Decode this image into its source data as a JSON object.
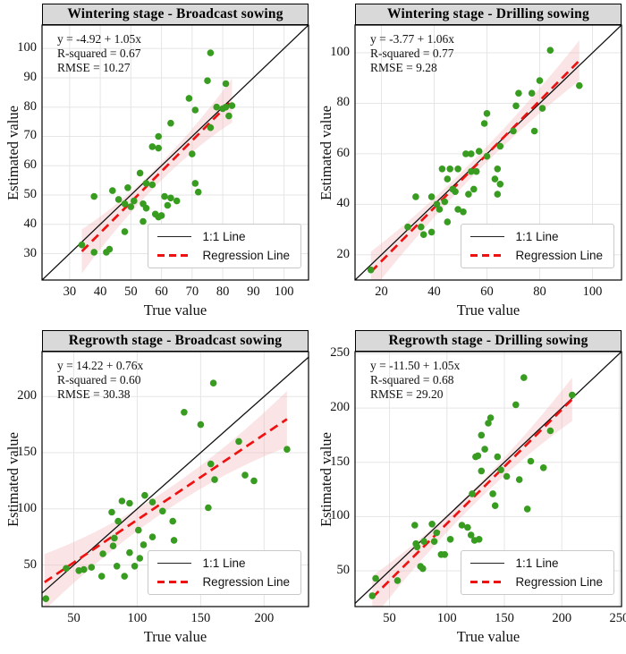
{
  "figure": {
    "colors": {
      "point": "#389c21",
      "regression": "#ee1111",
      "band": "#f2b9bb",
      "identity": "#111111",
      "grid": "#e5e5e5",
      "strip_bg": "#d9d9d9",
      "plot_border": "#000000",
      "legend_border": "#c9c9c9"
    }
  },
  "chart_data": [
    {
      "id": "wintering-broadcast",
      "type": "scatter",
      "title": "Wintering stage - Broadcast sowing",
      "xlabel": "True value",
      "ylabel": "Estimated value",
      "annotation": {
        "equation": "y = -4.92 + 1.05x",
        "r_squared": "R-squared = 0.67",
        "rmse": "RMSE = 10.27"
      },
      "regression": {
        "intercept": -4.92,
        "slope": 1.05,
        "x_start": 34,
        "x_end": 83,
        "band_halfwidth_mid": 3,
        "band_halfwidth_end": 7.5
      },
      "xlim": [
        21,
        108
      ],
      "ylim": [
        21,
        108
      ],
      "xticks": [
        30,
        40,
        50,
        60,
        70,
        80,
        90,
        100
      ],
      "yticks": [
        30,
        40,
        50,
        60,
        70,
        80,
        90,
        100
      ],
      "legend": [
        {
          "label": "1:1 Line",
          "style": "solid-black"
        },
        {
          "label": "Regression Line",
          "style": "dashed-red"
        }
      ],
      "points": [
        [
          34,
          33
        ],
        [
          38,
          49.5
        ],
        [
          38,
          30.5
        ],
        [
          42,
          30.5
        ],
        [
          43,
          31.5
        ],
        [
          44,
          51.5
        ],
        [
          46,
          48.5
        ],
        [
          48,
          37.5
        ],
        [
          48,
          47
        ],
        [
          49,
          52.5
        ],
        [
          50,
          46
        ],
        [
          51,
          48
        ],
        [
          53,
          57.5
        ],
        [
          54,
          41
        ],
        [
          54,
          47
        ],
        [
          55,
          45.5
        ],
        [
          55,
          54
        ],
        [
          57,
          53.5
        ],
        [
          57,
          66.5
        ],
        [
          58,
          43.5
        ],
        [
          59,
          42.5
        ],
        [
          59,
          66
        ],
        [
          59,
          70
        ],
        [
          60,
          43
        ],
        [
          61,
          49.5
        ],
        [
          62,
          46.5
        ],
        [
          63,
          49
        ],
        [
          63,
          74.5
        ],
        [
          65,
          48
        ],
        [
          69,
          83
        ],
        [
          70,
          64
        ],
        [
          71,
          54
        ],
        [
          71,
          79
        ],
        [
          72,
          51
        ],
        [
          75,
          89
        ],
        [
          76,
          73
        ],
        [
          76,
          98.5
        ],
        [
          78,
          80
        ],
        [
          80,
          79.5
        ],
        [
          81,
          80
        ],
        [
          81,
          88
        ],
        [
          82,
          77
        ],
        [
          83,
          80.5
        ]
      ]
    },
    {
      "id": "wintering-drilling",
      "type": "scatter",
      "title": "Wintering stage - Drilling sowing",
      "xlabel": "True value",
      "ylabel": "Estimated value",
      "annotation": {
        "equation": "y = -3.77 + 1.06x",
        "r_squared": "R-squared = 0.77",
        "rmse": "RMSE = 9.28"
      },
      "regression": {
        "intercept": -3.77,
        "slope": 1.06,
        "x_start": 16,
        "x_end": 95,
        "band_halfwidth_mid": 3,
        "band_halfwidth_end": 8
      },
      "xlim": [
        10,
        111
      ],
      "ylim": [
        10,
        111
      ],
      "xticks": [
        20,
        40,
        60,
        80,
        100
      ],
      "yticks": [
        20,
        40,
        60,
        80,
        100
      ],
      "legend": [
        {
          "label": "1:1 Line",
          "style": "solid-black"
        },
        {
          "label": "Regression Line",
          "style": "dashed-red"
        }
      ],
      "points": [
        [
          16,
          14
        ],
        [
          30,
          31
        ],
        [
          33,
          43
        ],
        [
          35,
          31
        ],
        [
          36,
          28
        ],
        [
          39,
          29
        ],
        [
          39,
          43
        ],
        [
          41,
          40
        ],
        [
          42,
          38
        ],
        [
          43,
          54
        ],
        [
          44,
          41
        ],
        [
          45,
          33
        ],
        [
          45,
          50
        ],
        [
          46,
          54
        ],
        [
          47,
          46
        ],
        [
          48,
          45
        ],
        [
          49,
          38
        ],
        [
          49,
          54
        ],
        [
          51,
          37
        ],
        [
          52,
          60
        ],
        [
          53,
          44
        ],
        [
          54,
          53
        ],
        [
          54,
          60
        ],
        [
          55,
          46
        ],
        [
          56,
          53
        ],
        [
          57,
          61
        ],
        [
          59,
          72
        ],
        [
          60,
          59
        ],
        [
          60,
          76
        ],
        [
          63,
          50
        ],
        [
          64,
          44
        ],
        [
          64,
          54
        ],
        [
          65,
          48
        ],
        [
          65,
          63
        ],
        [
          70,
          69
        ],
        [
          71,
          79
        ],
        [
          72,
          84
        ],
        [
          77,
          84
        ],
        [
          78,
          69
        ],
        [
          80,
          89
        ],
        [
          81,
          78
        ],
        [
          84,
          101
        ],
        [
          95,
          87
        ]
      ]
    },
    {
      "id": "regrowth-broadcast",
      "type": "scatter",
      "title": "Regrowth stage - Broadcast sowing",
      "xlabel": "True value",
      "ylabel": "Estimated value",
      "annotation": {
        "equation": "y = 14.22 + 0.76x",
        "r_squared": "R-squared = 0.60",
        "rmse": "RMSE = 30.38"
      },
      "regression": {
        "intercept": 14.22,
        "slope": 0.76,
        "x_start": 27,
        "x_end": 218,
        "band_halfwidth_mid": 9,
        "band_halfwidth_end": 25
      },
      "xlim": [
        25,
        235
      ],
      "ylim": [
        13,
        240
      ],
      "xticks": [
        50,
        100,
        150,
        200
      ],
      "yticks": [
        50,
        100,
        150,
        200
      ],
      "legend": [
        {
          "label": "1:1 Line",
          "style": "solid-black"
        },
        {
          "label": "Regression Line",
          "style": "dashed-red"
        }
      ],
      "points": [
        [
          28,
          20
        ],
        [
          44,
          47
        ],
        [
          54,
          45
        ],
        [
          58,
          46
        ],
        [
          64,
          48
        ],
        [
          72,
          40
        ],
        [
          73,
          60
        ],
        [
          80,
          97
        ],
        [
          81,
          67
        ],
        [
          82,
          74
        ],
        [
          84,
          49
        ],
        [
          85,
          89
        ],
        [
          88,
          107
        ],
        [
          90,
          40
        ],
        [
          94,
          61
        ],
        [
          94,
          105
        ],
        [
          98,
          49
        ],
        [
          101,
          81
        ],
        [
          102,
          56
        ],
        [
          105,
          68
        ],
        [
          106,
          112
        ],
        [
          112,
          75
        ],
        [
          112,
          106
        ],
        [
          120,
          98
        ],
        [
          128,
          89
        ],
        [
          129,
          72
        ],
        [
          137,
          186
        ],
        [
          150,
          175
        ],
        [
          156,
          101
        ],
        [
          158,
          140
        ],
        [
          160,
          212
        ],
        [
          161,
          126
        ],
        [
          180,
          160
        ],
        [
          185,
          130
        ],
        [
          192,
          125
        ],
        [
          218,
          153
        ]
      ]
    },
    {
      "id": "regrowth-drilling",
      "type": "scatter",
      "title": "Regrowth stage - Drilling sowing",
      "xlabel": "True value",
      "ylabel": "Estimated value",
      "annotation": {
        "equation": "y = -11.50 + 1.05x",
        "r_squared": "R-squared = 0.68",
        "rmse": "RMSE = 29.20"
      },
      "regression": {
        "intercept": -11.5,
        "slope": 1.05,
        "x_start": 35,
        "x_end": 209,
        "band_halfwidth_mid": 7,
        "band_halfwidth_end": 20
      },
      "xlim": [
        20,
        252
      ],
      "ylim": [
        17,
        252
      ],
      "xticks": [
        50,
        100,
        150,
        200,
        250
      ],
      "yticks": [
        50,
        100,
        150,
        200,
        250
      ],
      "legend": [
        {
          "label": "1:1 Line",
          "style": "solid-black"
        },
        {
          "label": "Regression Line",
          "style": "dashed-red"
        }
      ],
      "points": [
        [
          35,
          27
        ],
        [
          38,
          43
        ],
        [
          57,
          41
        ],
        [
          72,
          92
        ],
        [
          73,
          75
        ],
        [
          74,
          72
        ],
        [
          77,
          54
        ],
        [
          79,
          52
        ],
        [
          80,
          77
        ],
        [
          87,
          93
        ],
        [
          89,
          77
        ],
        [
          91,
          85
        ],
        [
          95,
          65
        ],
        [
          98,
          65
        ],
        [
          103,
          79
        ],
        [
          113,
          92
        ],
        [
          118,
          90
        ],
        [
          121,
          83
        ],
        [
          122,
          121
        ],
        [
          124,
          78
        ],
        [
          125,
          155
        ],
        [
          127,
          156
        ],
        [
          128,
          79
        ],
        [
          130,
          142
        ],
        [
          130,
          175
        ],
        [
          133,
          162
        ],
        [
          136,
          186
        ],
        [
          138,
          191
        ],
        [
          140,
          121
        ],
        [
          142,
          110
        ],
        [
          144,
          155
        ],
        [
          147,
          143
        ],
        [
          152,
          137
        ],
        [
          160,
          203
        ],
        [
          163,
          134
        ],
        [
          167,
          228
        ],
        [
          170,
          107
        ],
        [
          173,
          151
        ],
        [
          184,
          145
        ],
        [
          190,
          179
        ],
        [
          209,
          212
        ]
      ]
    }
  ]
}
